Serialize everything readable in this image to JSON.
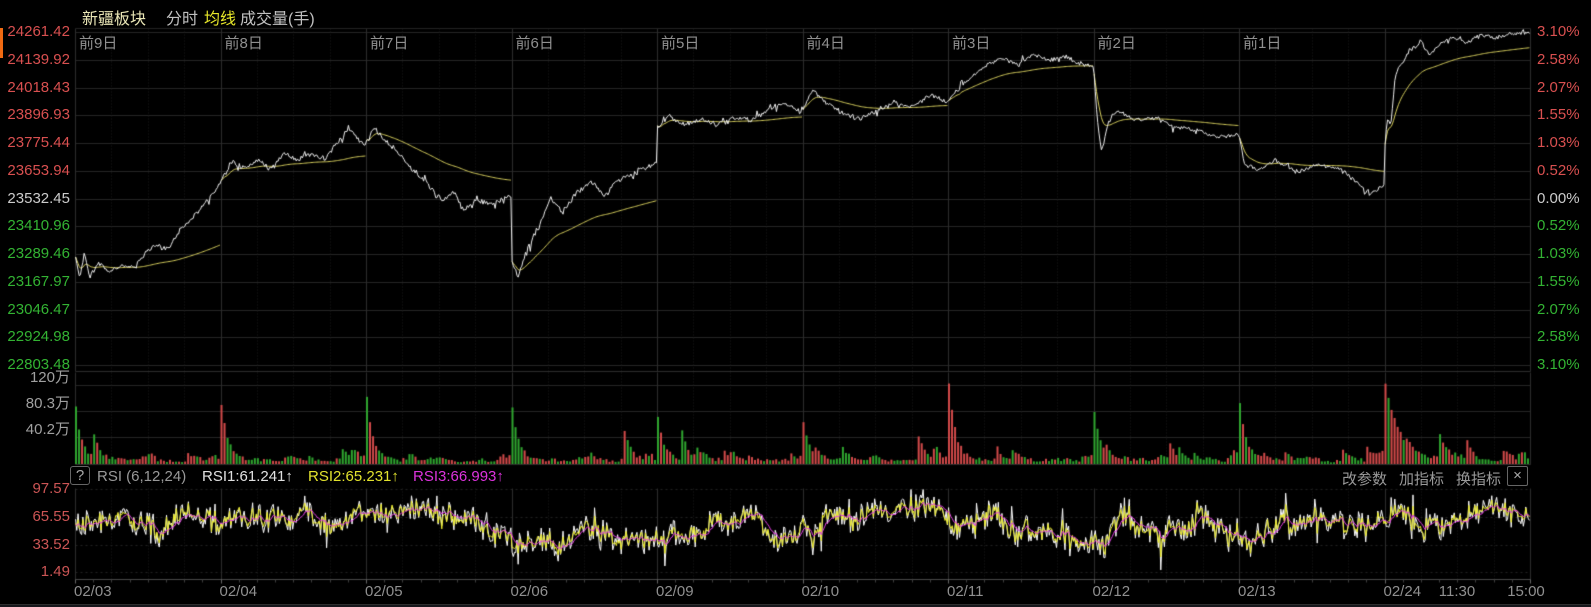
{
  "header": {
    "title": "新疆板块",
    "tabs": [
      {
        "label": "分时"
      },
      {
        "label": "均线"
      },
      {
        "label": "成交量(手)"
      }
    ]
  },
  "colors": {
    "up_text": "#d95050",
    "down_text": "#33b333",
    "neutral_text": "#cccccc",
    "axis_gray": "#999999",
    "price_line": "#eeeeee",
    "ma_line": "#d8d05e",
    "vol_up": "#d24a4a",
    "vol_down": "#2fa52f",
    "rsi1": "#ffffff",
    "rsi2": "#eded2d",
    "rsi3": "#e13ce1",
    "rsi_axis": "#cc5555",
    "accent_marker": "#f06a12"
  },
  "chart_data": [
    {
      "type": "line",
      "title": "新疆板块 分时",
      "y_axis_left": [
        "24261.42",
        "24139.92",
        "24018.43",
        "23896.93",
        "23775.44",
        "23653.94",
        "23532.45",
        "23410.96",
        "23289.46",
        "23167.97",
        "23046.47",
        "22924.98",
        "22803.48"
      ],
      "y_axis_right": [
        "3.10%",
        "2.58%",
        "2.07%",
        "1.55%",
        "1.03%",
        "0.52%",
        "0.00%",
        "0.52%",
        "1.03%",
        "1.55%",
        "2.07%",
        "2.58%",
        "3.10%"
      ],
      "day_labels": [
        "前9日",
        "前8日",
        "前7日",
        "前6日",
        "前5日",
        "前4日",
        "前3日",
        "前2日",
        "前1日"
      ],
      "prev_close": 23532.45,
      "ylim": [
        22803.48,
        24261.42
      ],
      "current_price": 24261.42,
      "current_change_pct": "3.10%",
      "series": [
        {
          "name": "price",
          "color": "#eeeeee",
          "days": [
            {
              "date": "02/03",
              "noise": 10,
              "waypoints": [
                [
                  0,
                  23285
                ],
                [
                  0.03,
                  23180
                ],
                [
                  0.06,
                  23300
                ],
                [
                  0.1,
                  23190
                ],
                [
                  0.16,
                  23250
                ],
                [
                  0.24,
                  23210
                ],
                [
                  0.32,
                  23245
                ],
                [
                  0.4,
                  23230
                ],
                [
                  0.48,
                  23290
                ],
                [
                  0.56,
                  23330
                ],
                [
                  0.64,
                  23310
                ],
                [
                  0.72,
                  23390
                ],
                [
                  0.8,
                  23440
                ],
                [
                  0.9,
                  23510
                ],
                [
                  1,
                  23600
                ]
              ]
            },
            {
              "date": "02/04",
              "noise": 10,
              "waypoints": [
                [
                  0,
                  23615
                ],
                [
                  0.08,
                  23690
                ],
                [
                  0.16,
                  23665
                ],
                [
                  0.26,
                  23700
                ],
                [
                  0.34,
                  23660
                ],
                [
                  0.44,
                  23735
                ],
                [
                  0.52,
                  23700
                ],
                [
                  0.62,
                  23730
                ],
                [
                  0.72,
                  23705
                ],
                [
                  0.8,
                  23770
                ],
                [
                  0.88,
                  23835
                ],
                [
                  0.94,
                  23800
                ],
                [
                  1,
                  23760
                ]
              ]
            },
            {
              "date": "02/05",
              "noise": 11,
              "waypoints": [
                [
                  0,
                  23780
                ],
                [
                  0.05,
                  23845
                ],
                [
                  0.12,
                  23790
                ],
                [
                  0.22,
                  23735
                ],
                [
                  0.32,
                  23660
                ],
                [
                  0.42,
                  23600
                ],
                [
                  0.52,
                  23520
                ],
                [
                  0.6,
                  23560
                ],
                [
                  0.68,
                  23480
                ],
                [
                  0.76,
                  23530
                ],
                [
                  0.86,
                  23505
                ],
                [
                  1,
                  23550
                ]
              ]
            },
            {
              "date": "02/06",
              "noise": 12,
              "waypoints": [
                [
                  0,
                  23255
                ],
                [
                  0.04,
                  23185
                ],
                [
                  0.1,
                  23300
                ],
                [
                  0.18,
                  23405
                ],
                [
                  0.27,
                  23530
                ],
                [
                  0.35,
                  23470
                ],
                [
                  0.45,
                  23560
                ],
                [
                  0.55,
                  23605
                ],
                [
                  0.64,
                  23545
                ],
                [
                  0.74,
                  23615
                ],
                [
                  0.86,
                  23650
                ],
                [
                  1,
                  23685
                ]
              ]
            },
            {
              "date": "02/09",
              "noise": 11,
              "waypoints": [
                [
                  0,
                  23845
                ],
                [
                  0.08,
                  23895
                ],
                [
                  0.18,
                  23855
                ],
                [
                  0.3,
                  23880
                ],
                [
                  0.42,
                  23855
                ],
                [
                  0.54,
                  23890
                ],
                [
                  0.66,
                  23875
                ],
                [
                  0.78,
                  23930
                ],
                [
                  0.88,
                  23950
                ],
                [
                  1,
                  23905
                ]
              ]
            },
            {
              "date": "02/10",
              "noise": 11,
              "waypoints": [
                [
                  0,
                  23925
                ],
                [
                  0.07,
                  24005
                ],
                [
                  0.16,
                  23950
                ],
                [
                  0.28,
                  23905
                ],
                [
                  0.4,
                  23880
                ],
                [
                  0.52,
                  23920
                ],
                [
                  0.64,
                  23955
                ],
                [
                  0.76,
                  23930
                ],
                [
                  0.88,
                  23985
                ],
                [
                  1,
                  23955
                ]
              ]
            },
            {
              "date": "02/11",
              "noise": 9,
              "waypoints": [
                [
                  0,
                  23965
                ],
                [
                  0.08,
                  24020
                ],
                [
                  0.22,
                  24100
                ],
                [
                  0.36,
                  24150
                ],
                [
                  0.48,
                  24120
                ],
                [
                  0.58,
                  24160
                ],
                [
                  0.7,
                  24135
                ],
                [
                  0.8,
                  24155
                ],
                [
                  0.9,
                  24125
                ],
                [
                  1,
                  24115
                ]
              ]
            },
            {
              "date": "02/12",
              "noise": 9,
              "waypoints": [
                [
                  0,
                  24080
                ],
                [
                  0.02,
                  23890
                ],
                [
                  0.05,
                  23735
                ],
                [
                  0.1,
                  23865
                ],
                [
                  0.16,
                  23920
                ],
                [
                  0.28,
                  23875
                ],
                [
                  0.42,
                  23885
                ],
                [
                  0.56,
                  23845
                ],
                [
                  0.7,
                  23835
                ],
                [
                  0.85,
                  23800
                ],
                [
                  1,
                  23815
                ]
              ]
            },
            {
              "date": "02/13",
              "noise": 9,
              "waypoints": [
                [
                  0,
                  23800
                ],
                [
                  0.03,
                  23690
                ],
                [
                  0.12,
                  23655
                ],
                [
                  0.25,
                  23700
                ],
                [
                  0.4,
                  23650
                ],
                [
                  0.55,
                  23680
                ],
                [
                  0.7,
                  23660
                ],
                [
                  0.82,
                  23600
                ],
                [
                  0.9,
                  23545
                ],
                [
                  1,
                  23590
                ]
              ]
            },
            {
              "date": "02/24",
              "noise": 8,
              "waypoints": [
                [
                  0,
                  23770
                ],
                [
                  0.015,
                  23880
                ],
                [
                  0.04,
                  23860
                ],
                [
                  0.07,
                  24070
                ],
                [
                  0.12,
                  24130
                ],
                [
                  0.18,
                  24185
                ],
                [
                  0.25,
                  24215
                ],
                [
                  0.31,
                  24160
                ],
                [
                  0.38,
                  24210
                ],
                [
                  0.46,
                  24235
                ],
                [
                  0.56,
                  24215
                ],
                [
                  0.66,
                  24250
                ],
                [
                  0.76,
                  24235
                ],
                [
                  0.88,
                  24255
                ],
                [
                  1,
                  24261
                ]
              ]
            }
          ]
        },
        {
          "name": "均线",
          "color": "#d8d05e",
          "derived": "intraday running average of price"
        }
      ]
    },
    {
      "type": "bar",
      "title": "成交量(手)",
      "y_axis": [
        "120万",
        "80.3万",
        "40.2万"
      ],
      "ymax_wan": 120,
      "open_spikes_wan": [
        78,
        85,
        95,
        82,
        62,
        58,
        120,
        72,
        85,
        92
      ],
      "open_bar_up": [
        false,
        true,
        false,
        false,
        false,
        true,
        true,
        false,
        false,
        true
      ],
      "open_decay": [
        22,
        22,
        22,
        22,
        22,
        22,
        22,
        22,
        22,
        10
      ],
      "up_color": "#d24a4a",
      "down_color": "#2fa52f"
    },
    {
      "type": "line",
      "title": "RSI (6,12,24)",
      "y_axis": [
        "97.57",
        "65.55",
        "33.52",
        "1.49"
      ],
      "ylim": [
        1.49,
        97.57
      ],
      "series": [
        {
          "name": "RSI1",
          "period": 6,
          "color": "#ffffff",
          "end": 61.241
        },
        {
          "name": "RSI2",
          "period": 12,
          "color": "#eded2d",
          "end": 65.231
        },
        {
          "name": "RSI3",
          "period": 24,
          "color": "#e13ce1",
          "end": 66.993
        }
      ]
    }
  ],
  "rsi_header": {
    "help": "?",
    "name": "RSI (6,12,24)",
    "rsi1": "RSI1:61.241↑",
    "rsi2": "RSI2:65.231↑",
    "rsi3": "RSI3:66.993↑",
    "buttons": [
      "改参数",
      "加指标",
      "换指标"
    ],
    "close": "×"
  },
  "x_axis": {
    "dates": [
      "02/03",
      "02/04",
      "02/05",
      "02/06",
      "02/09",
      "02/10",
      "02/11",
      "02/12",
      "02/13",
      "02/24"
    ],
    "times": [
      "11:30",
      "15:00"
    ]
  }
}
